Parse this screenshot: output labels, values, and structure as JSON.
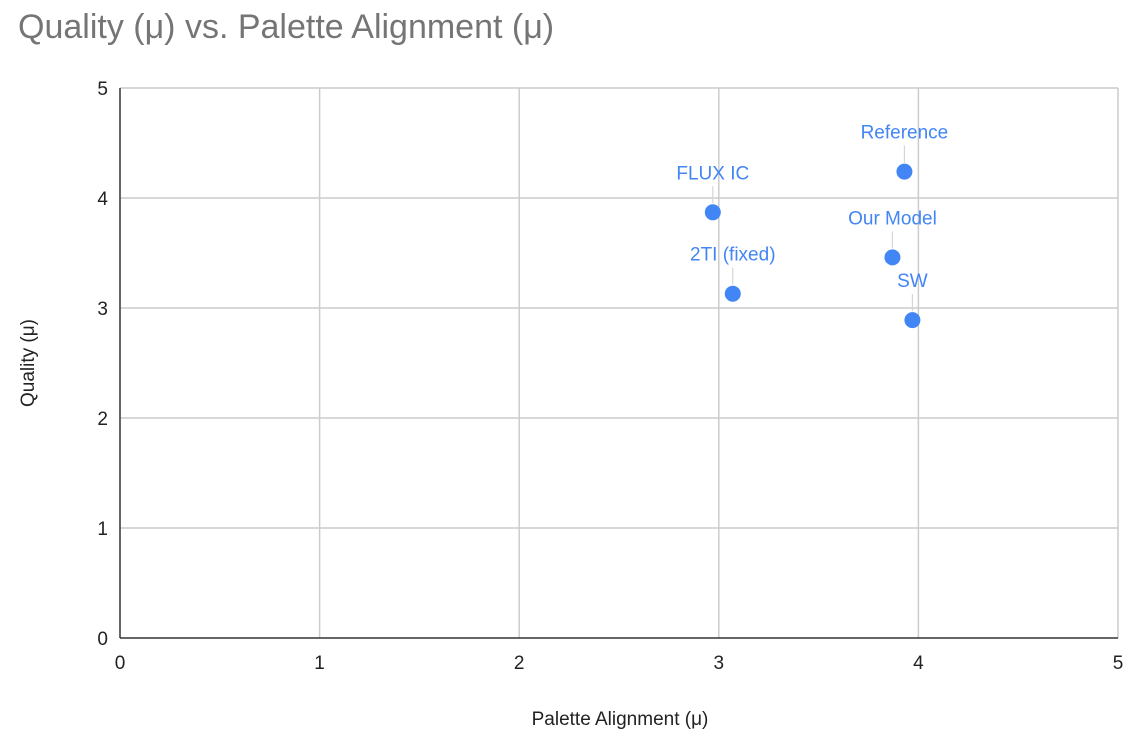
{
  "chart_data": {
    "type": "scatter",
    "title": "Quality (μ) vs. Palette Alignment (μ)",
    "xlabel": "Palette Alignment (μ)",
    "ylabel": "Quality (μ)",
    "xlim": [
      0,
      5
    ],
    "ylim": [
      0,
      5
    ],
    "xticks": [
      "0",
      "1",
      "2",
      "3",
      "4",
      "5"
    ],
    "yticks": [
      "0",
      "1",
      "2",
      "3",
      "4",
      "5"
    ],
    "grid": true,
    "legend": "none",
    "point_color": "#4285f4",
    "label_color": "#4285f4",
    "points": [
      {
        "label": "Reference",
        "x": 3.93,
        "y": 4.24
      },
      {
        "label": "FLUX IC",
        "x": 2.97,
        "y": 3.87
      },
      {
        "label": "Our Model",
        "x": 3.87,
        "y": 3.46
      },
      {
        "label": "2TI (fixed)",
        "x": 3.07,
        "y": 3.13
      },
      {
        "label": "SW",
        "x": 3.97,
        "y": 2.89
      }
    ]
  }
}
